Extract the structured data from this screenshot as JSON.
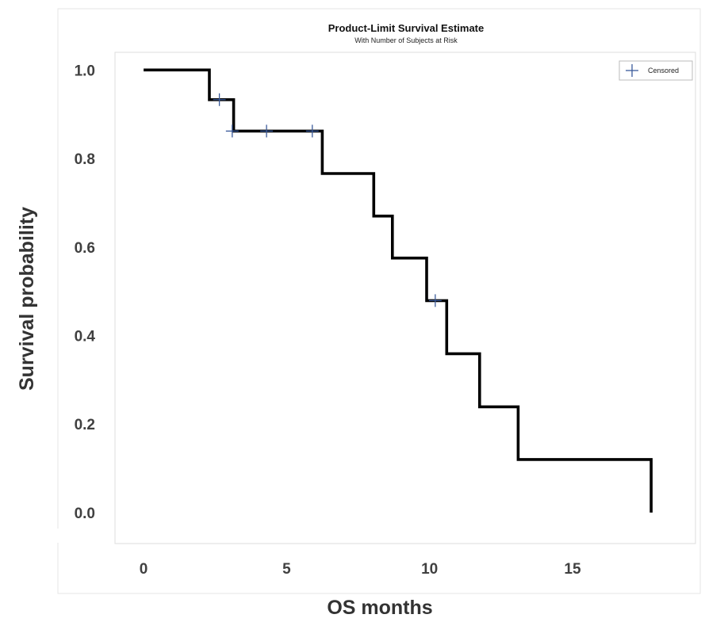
{
  "chart_data": {
    "type": "line",
    "title": "Product-Limit Survival Estimate",
    "subtitle": "With Number of Subjects at Risk",
    "xlabel": "OS months",
    "ylabel": "Survival probability",
    "xlim": [
      -1,
      19.3
    ],
    "ylim": [
      -0.07,
      1.04
    ],
    "x_ticks": [
      0,
      5,
      10,
      15
    ],
    "x_tick_labels": [
      "0",
      "5",
      "10",
      "15"
    ],
    "y_ticks": [
      0.0,
      0.2,
      0.4,
      0.6,
      0.8,
      1.0
    ],
    "y_tick_labels": [
      "0.0",
      "0.2",
      "0.4",
      "0.6",
      "0.8",
      "1.0"
    ],
    "grid": false,
    "legend": {
      "position": "top-right",
      "entries": [
        "Censored"
      ]
    },
    "series": [
      {
        "step": "post",
        "color": "#000000",
        "x": [
          0,
          2.3,
          3.15,
          6.25,
          8.05,
          8.7,
          9.9,
          10.6,
          11.75,
          13.1,
          17.75
        ],
        "y": [
          1.0,
          0.933,
          0.862,
          0.766,
          0.67,
          0.575,
          0.479,
          0.359,
          0.239,
          0.12,
          0.0
        ]
      }
    ],
    "censored": {
      "name": "Censored",
      "color": "#3a5a9a",
      "x": [
        2.65,
        3.1,
        4.3,
        5.9,
        10.2
      ],
      "y": [
        0.933,
        0.862,
        0.862,
        0.862,
        0.479
      ]
    }
  }
}
